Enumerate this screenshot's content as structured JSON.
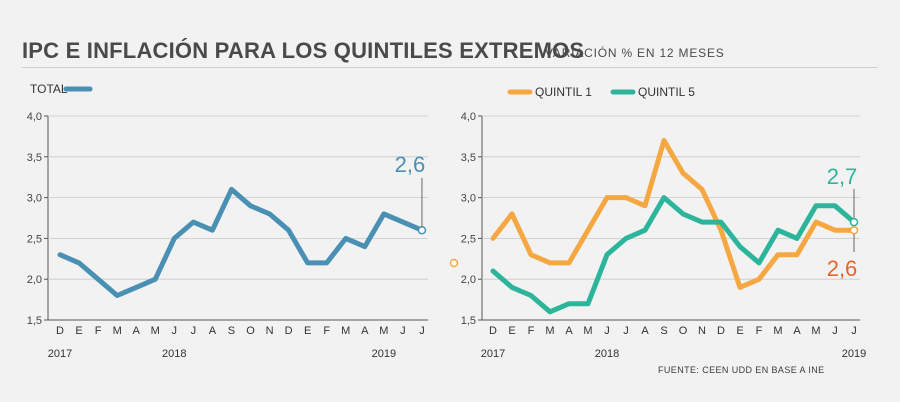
{
  "header": {
    "title": "IPC E INFLACIÓN PARA LOS QUINTILES EXTREMOS",
    "subtitle": "VARIACIÓN % EN 12 MESES"
  },
  "source": "FUENTE: CEEN UDD EN BASE A INE",
  "colors": {
    "total": "#4a90b4",
    "q1": "#f5a742",
    "q5": "#2cb59b",
    "q1_label": "#e8652a",
    "axis": "#555555",
    "grid": "#c8c8c8"
  },
  "chart_data": [
    {
      "type": "line",
      "ylim": [
        1.5,
        4.0
      ],
      "ytick_labels": [
        "4,0",
        "3,5",
        "3,0",
        "2,5",
        "2,0",
        "1,5"
      ],
      "yticks": [
        4.0,
        3.5,
        3.0,
        2.5,
        2.0,
        1.5
      ],
      "x": [
        "D",
        "E",
        "F",
        "M",
        "A",
        "M",
        "J",
        "J",
        "A",
        "S",
        "O",
        "N",
        "D",
        "E",
        "F",
        "M",
        "A",
        "M",
        "J",
        "J"
      ],
      "year_labels": [
        {
          "label": "2017",
          "index": 0
        },
        {
          "label": "2018",
          "index": 6
        },
        {
          "label": "2019",
          "index": 17
        }
      ],
      "series": [
        {
          "name": "TOTAL",
          "color": "#4a90b4",
          "values": [
            2.3,
            2.2,
            2.0,
            1.8,
            1.9,
            2.0,
            2.5,
            2.7,
            2.6,
            3.1,
            2.9,
            2.8,
            2.6,
            2.2,
            2.2,
            2.5,
            2.4,
            2.8,
            2.7,
            2.6
          ]
        }
      ],
      "end_labels": [
        {
          "series": "TOTAL",
          "text": "2,6"
        }
      ],
      "grid": true
    },
    {
      "type": "line",
      "ylim": [
        1.5,
        4.0
      ],
      "ytick_labels": [
        "4,0",
        "3,5",
        "3,0",
        "2,5",
        "2,0",
        "1,5"
      ],
      "yticks": [
        4.0,
        3.5,
        3.0,
        2.5,
        2.0,
        1.5
      ],
      "x": [
        "D",
        "E",
        "F",
        "M",
        "A",
        "M",
        "J",
        "J",
        "A",
        "S",
        "O",
        "N",
        "D",
        "E",
        "F",
        "M",
        "A",
        "M",
        "J",
        "J"
      ],
      "year_labels": [
        {
          "label": "2017",
          "index": 0
        },
        {
          "label": "2018",
          "index": 6
        },
        {
          "label": "2019",
          "index": 19
        }
      ],
      "series": [
        {
          "name": "QUINTIL 1",
          "color": "#f5a742",
          "values": [
            2.5,
            2.8,
            2.3,
            2.2,
            2.2,
            2.6,
            3.0,
            3.0,
            2.9,
            3.7,
            3.3,
            3.1,
            2.6,
            1.9,
            2.0,
            2.3,
            2.3,
            2.7,
            2.6,
            2.6
          ]
        },
        {
          "name": "QUINTIL 5",
          "color": "#2cb59b",
          "values": [
            2.1,
            1.9,
            1.8,
            1.6,
            1.7,
            1.7,
            2.3,
            2.5,
            2.6,
            3.0,
            2.8,
            2.7,
            2.7,
            2.4,
            2.2,
            2.6,
            2.5,
            2.9,
            2.9,
            2.7
          ]
        }
      ],
      "end_labels": [
        {
          "series": "QUINTIL 5",
          "text": "2,7"
        },
        {
          "series": "QUINTIL 1",
          "text": "2,6"
        }
      ],
      "grid": true
    }
  ]
}
